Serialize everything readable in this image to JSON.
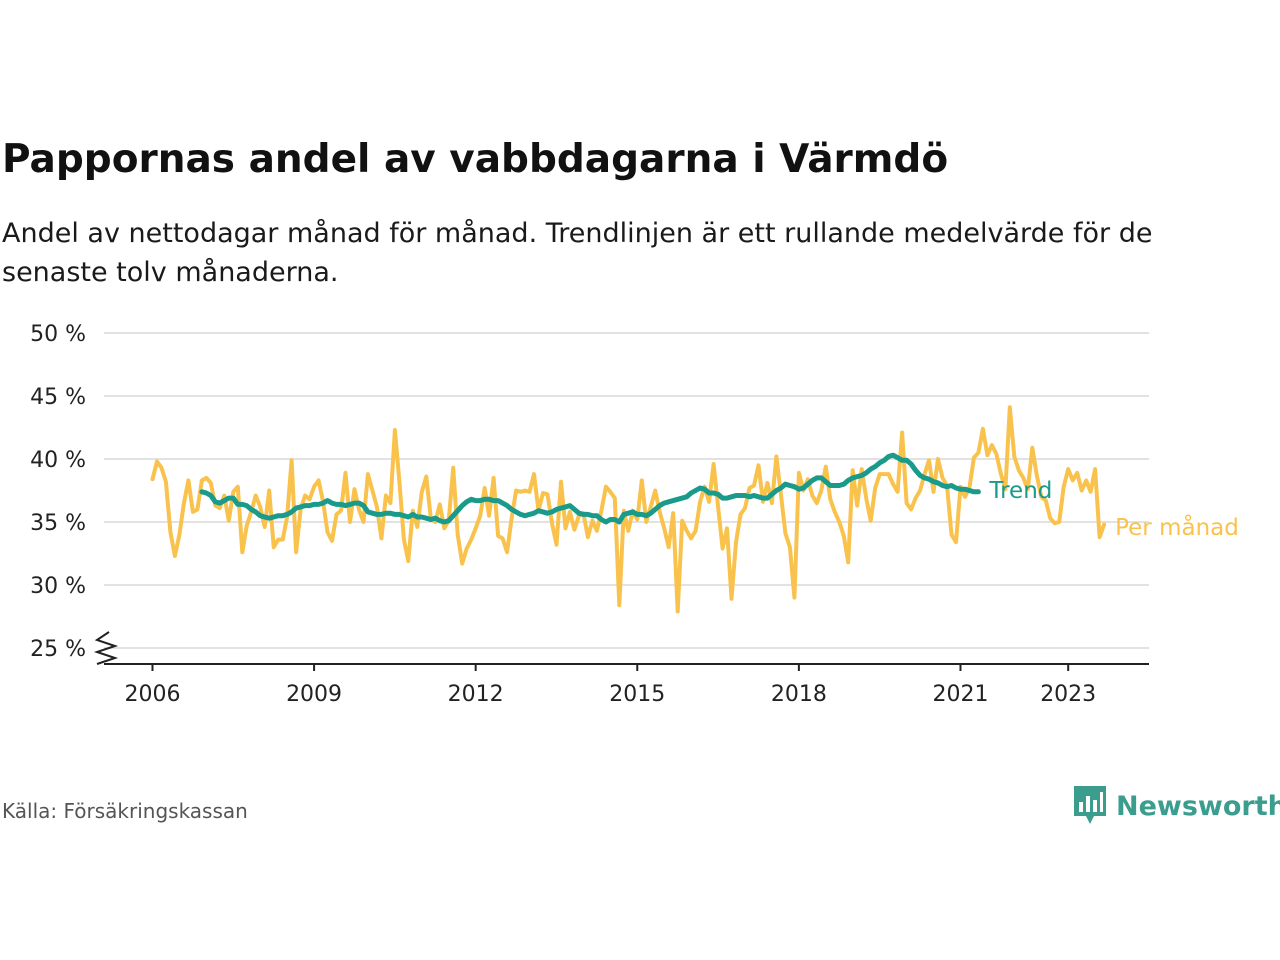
{
  "title": "Pappornas andel av vabbdagarna i Värmdö",
  "subtitle": "Andel av nettodagar månad för månad. Trendlinjen är ett rullande medelvärde för de senaste tolv månaderna.",
  "source": "Källa: Försäkringskassan",
  "brand": {
    "name": "Newsworthy",
    "color": "#3a9d8e",
    "icon": "bar-chart-logo-icon"
  },
  "chart_data": {
    "type": "line",
    "xlabel": "",
    "ylabel": "",
    "ylim": [
      25,
      50
    ],
    "xlim": [
      2005.1,
      2024.5
    ],
    "y_ticks": [
      {
        "value": 50,
        "label": "50 %"
      },
      {
        "value": 45,
        "label": "45 %"
      },
      {
        "value": 40,
        "label": "40 %"
      },
      {
        "value": 35,
        "label": "35 %"
      },
      {
        "value": 30,
        "label": "30 %"
      },
      {
        "value": 25,
        "label": "25 %"
      }
    ],
    "x_ticks": [
      {
        "value": 2006,
        "label": "2006"
      },
      {
        "value": 2009,
        "label": "2009"
      },
      {
        "value": 2012,
        "label": "2012"
      },
      {
        "value": 2015,
        "label": "2015"
      },
      {
        "value": 2018,
        "label": "2018"
      },
      {
        "value": 2021,
        "label": "2021"
      },
      {
        "value": 2023,
        "label": "2023"
      }
    ],
    "grid": true,
    "axis_break": true,
    "legend": "line-end labels",
    "series": [
      {
        "name": "Per månad",
        "color": "#f9c24d",
        "start": "2006-01",
        "values": [
          38.4,
          39.8,
          39.3,
          38.2,
          34.2,
          32.3,
          34.0,
          36.5,
          38.3,
          35.8,
          36.0,
          38.3,
          38.5,
          38.1,
          36.3,
          36.1,
          37.1,
          35.1,
          37.4,
          37.8,
          32.6,
          34.7,
          35.8,
          37.1,
          36.2,
          34.6,
          37.5,
          33.0,
          33.6,
          33.6,
          35.4,
          39.9,
          32.6,
          36.0,
          37.1,
          36.8,
          37.8,
          38.3,
          36.6,
          34.2,
          33.5,
          35.6,
          35.9,
          38.9,
          35.0,
          37.6,
          36.0,
          35.0,
          38.8,
          37.5,
          36.2,
          33.7,
          37.1,
          36.5,
          42.3,
          38.2,
          33.6,
          31.9,
          35.9,
          34.6,
          37.4,
          38.6,
          35.3,
          35.0,
          36.4,
          34.5,
          35.1,
          39.3,
          34.0,
          31.7,
          32.9,
          33.6,
          34.5,
          35.5,
          37.7,
          35.5,
          38.5,
          33.9,
          33.7,
          32.6,
          35.3,
          37.5,
          37.4,
          37.5,
          37.4,
          38.8,
          35.9,
          37.3,
          37.2,
          34.9,
          33.2,
          38.2,
          34.5,
          35.8,
          34.4,
          35.5,
          35.7,
          33.8,
          35.1,
          34.3,
          35.9,
          37.8,
          37.4,
          36.9,
          28.4,
          35.9,
          34.3,
          35.9,
          35.2,
          38.3,
          35.0,
          36.2,
          37.5,
          35.8,
          34.5,
          33.0,
          35.7,
          27.9,
          35.1,
          34.3,
          33.7,
          34.3,
          36.6,
          37.8,
          36.6,
          39.6,
          36.2,
          32.9,
          34.5,
          28.9,
          33.4,
          35.6,
          36.1,
          37.7,
          37.9,
          39.5,
          36.6,
          38.1,
          36.5,
          40.2,
          37.2,
          34.1,
          33.0,
          29.0,
          38.9,
          37.5,
          38.4,
          37.1,
          36.5,
          37.5,
          39.4,
          36.8,
          35.8,
          35.0,
          33.9,
          31.8,
          39.1,
          36.3,
          39.2,
          36.9,
          35.1,
          37.7,
          38.8,
          38.8,
          38.8,
          38.0,
          37.4,
          42.1,
          36.5,
          36.0,
          36.9,
          37.5,
          38.8,
          39.9,
          37.4,
          40.0,
          38.5,
          37.9,
          34.0,
          33.4,
          37.8,
          37.0,
          37.7,
          40.1,
          40.5,
          42.4,
          40.3,
          41.1,
          40.4,
          38.8,
          37.6,
          44.1,
          40.2,
          39.1,
          38.5,
          37.6,
          40.9,
          38.7,
          37.0,
          36.7,
          35.3,
          34.9,
          35.0,
          37.8,
          39.2,
          38.3,
          38.9,
          37.5,
          38.3,
          37.4,
          39.2,
          33.8,
          34.8
        ]
      },
      {
        "name": "Trend",
        "color": "#1a9a8a",
        "start": "2006-12",
        "values": [
          37.4,
          37.3,
          37.1,
          36.6,
          36.5,
          36.7,
          36.9,
          36.9,
          36.4,
          36.4,
          36.3,
          36.0,
          35.8,
          35.5,
          35.4,
          35.3,
          35.4,
          35.5,
          35.5,
          35.6,
          35.8,
          36.1,
          36.2,
          36.3,
          36.3,
          36.4,
          36.4,
          36.5,
          36.7,
          36.5,
          36.4,
          36.4,
          36.3,
          36.4,
          36.5,
          36.5,
          36.3,
          35.8,
          35.7,
          35.6,
          35.6,
          35.7,
          35.7,
          35.6,
          35.6,
          35.5,
          35.4,
          35.6,
          35.4,
          35.4,
          35.3,
          35.2,
          35.3,
          35.1,
          35.0,
          35.1,
          35.5,
          35.9,
          36.3,
          36.6,
          36.8,
          36.7,
          36.7,
          36.8,
          36.8,
          36.7,
          36.7,
          36.5,
          36.3,
          36.0,
          35.8,
          35.6,
          35.5,
          35.6,
          35.7,
          35.9,
          35.8,
          35.7,
          35.8,
          36.0,
          36.1,
          36.2,
          36.3,
          36.0,
          35.7,
          35.6,
          35.6,
          35.5,
          35.5,
          35.2,
          35.0,
          35.2,
          35.2,
          35.0,
          35.6,
          35.7,
          35.8,
          35.6,
          35.6,
          35.5,
          35.7,
          36.0,
          36.3,
          36.5,
          36.6,
          36.7,
          36.8,
          36.9,
          37.0,
          37.3,
          37.5,
          37.7,
          37.6,
          37.3,
          37.3,
          37.2,
          36.9,
          36.9,
          37.0,
          37.1,
          37.1,
          37.1,
          37.0,
          37.1,
          37.0,
          36.9,
          36.9,
          37.2,
          37.5,
          37.7,
          38.0,
          37.9,
          37.8,
          37.6,
          37.7,
          38.0,
          38.3,
          38.5,
          38.5,
          38.2,
          37.9,
          37.9,
          37.9,
          38.0,
          38.3,
          38.5,
          38.6,
          38.7,
          38.9,
          39.2,
          39.4,
          39.7,
          39.9,
          40.2,
          40.3,
          40.1,
          39.9,
          39.9,
          39.6,
          39.1,
          38.7,
          38.5,
          38.4,
          38.2,
          38.1,
          37.9,
          37.8,
          37.9,
          37.7,
          37.6,
          37.6,
          37.5,
          37.4,
          37.4
        ]
      }
    ]
  }
}
